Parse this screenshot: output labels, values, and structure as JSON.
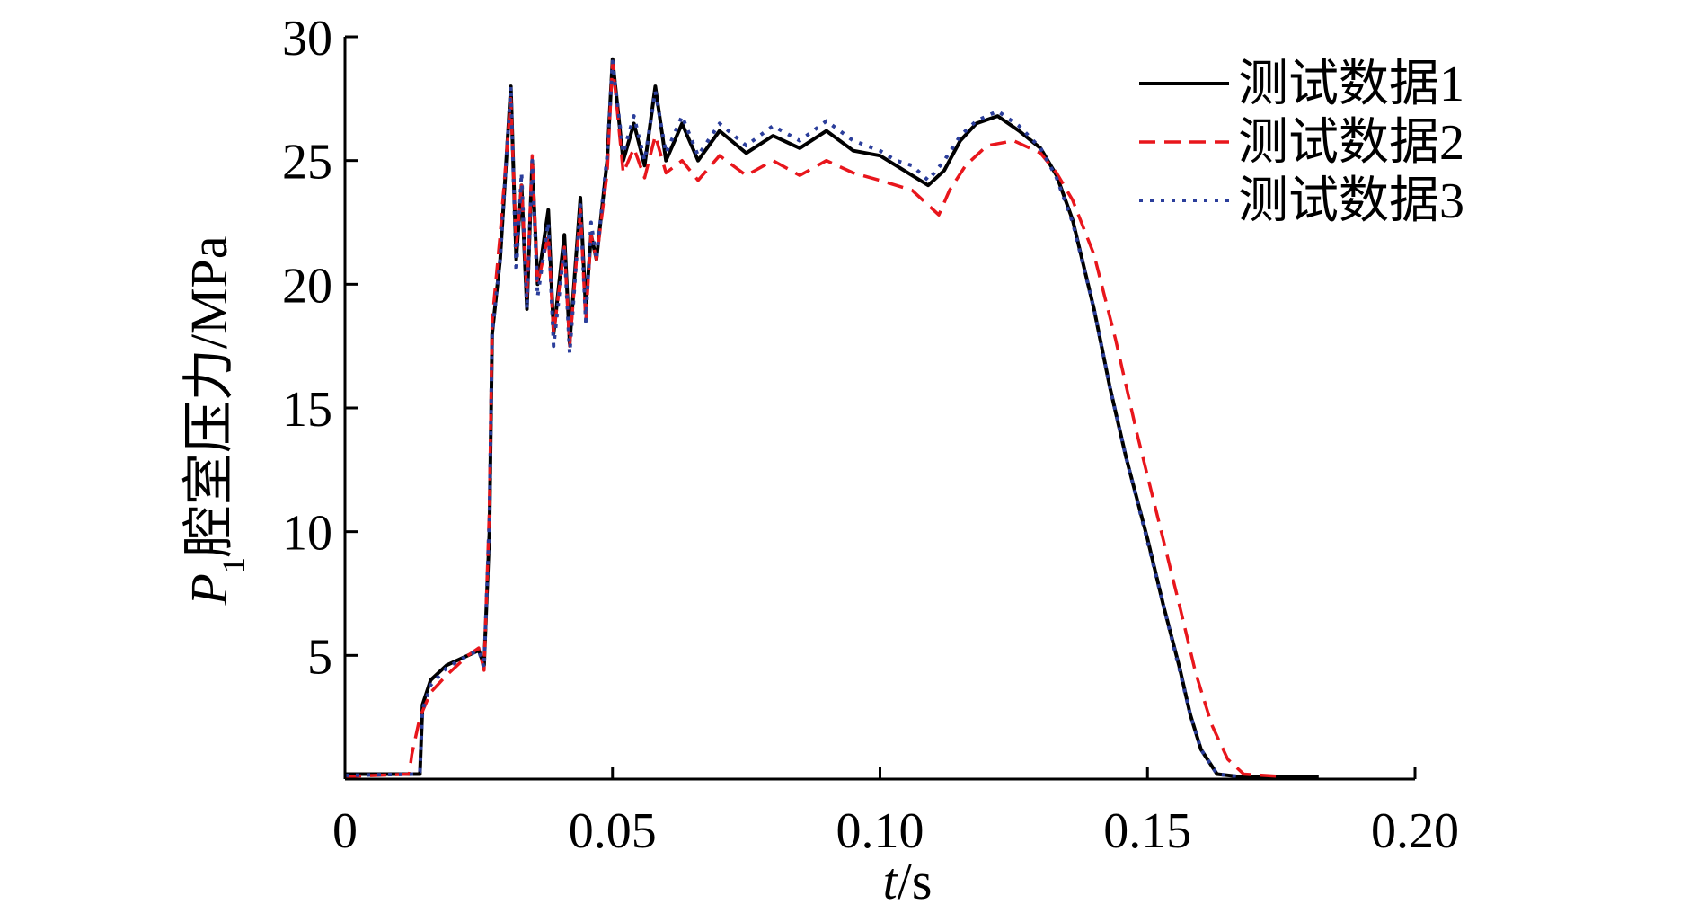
{
  "chart_data": {
    "type": "line",
    "title": "",
    "xlabel": {
      "var": "t",
      "unit": "/s"
    },
    "ylabel": {
      "var": "P",
      "sub": "1",
      "text": "腔室压力/MPa"
    },
    "xlim": [
      0,
      0.2
    ],
    "ylim": [
      0,
      30
    ],
    "x_ticks": [
      0,
      0.05,
      0.1,
      0.15,
      0.2
    ],
    "x_tick_labels": [
      "0",
      "0.05",
      "0.10",
      "0.15",
      "0.20"
    ],
    "y_ticks": [
      5,
      10,
      15,
      20,
      25,
      30
    ],
    "y_tick_labels": [
      "5",
      "10",
      "15",
      "20",
      "25",
      "30"
    ],
    "grid": false,
    "legend_position": "top-right",
    "series": [
      {
        "name": "测试数据1",
        "color": "#000000",
        "style": "solid",
        "points": [
          [
            0,
            0.2
          ],
          [
            0.013,
            0.2
          ],
          [
            0.014,
            0.2
          ],
          [
            0.0145,
            3
          ],
          [
            0.016,
            4
          ],
          [
            0.019,
            4.6
          ],
          [
            0.023,
            5
          ],
          [
            0.025,
            5.2
          ],
          [
            0.026,
            4.6
          ],
          [
            0.027,
            10
          ],
          [
            0.0275,
            18
          ],
          [
            0.029,
            21
          ],
          [
            0.031,
            28
          ],
          [
            0.032,
            21
          ],
          [
            0.033,
            24
          ],
          [
            0.034,
            19
          ],
          [
            0.035,
            25
          ],
          [
            0.036,
            20
          ],
          [
            0.038,
            23
          ],
          [
            0.039,
            18
          ],
          [
            0.041,
            22
          ],
          [
            0.042,
            17.6
          ],
          [
            0.044,
            23.5
          ],
          [
            0.045,
            19
          ],
          [
            0.046,
            22
          ],
          [
            0.047,
            21
          ],
          [
            0.049,
            25
          ],
          [
            0.05,
            29.1
          ],
          [
            0.052,
            25
          ],
          [
            0.054,
            26.5
          ],
          [
            0.056,
            24.8
          ],
          [
            0.058,
            28
          ],
          [
            0.06,
            25
          ],
          [
            0.063,
            26.5
          ],
          [
            0.066,
            25
          ],
          [
            0.07,
            26.2
          ],
          [
            0.075,
            25.3
          ],
          [
            0.08,
            26
          ],
          [
            0.085,
            25.5
          ],
          [
            0.09,
            26.2
          ],
          [
            0.095,
            25.4
          ],
          [
            0.1,
            25.2
          ],
          [
            0.103,
            24.8
          ],
          [
            0.106,
            24.4
          ],
          [
            0.109,
            24
          ],
          [
            0.112,
            24.6
          ],
          [
            0.115,
            25.8
          ],
          [
            0.118,
            26.5
          ],
          [
            0.122,
            26.8
          ],
          [
            0.126,
            26.2
          ],
          [
            0.13,
            25.5
          ],
          [
            0.133,
            24.4
          ],
          [
            0.136,
            22.6
          ],
          [
            0.14,
            19
          ],
          [
            0.143,
            15.8
          ],
          [
            0.146,
            13
          ],
          [
            0.15,
            9.7
          ],
          [
            0.153,
            7
          ],
          [
            0.156,
            4.5
          ],
          [
            0.158,
            2.6
          ],
          [
            0.16,
            1.2
          ],
          [
            0.163,
            0.2
          ],
          [
            0.167,
            0.1
          ],
          [
            0.182,
            0.1
          ]
        ]
      },
      {
        "name": "测试数据2",
        "color": "#e8161c",
        "style": "dashed",
        "points": [
          [
            0,
            0.1
          ],
          [
            0.012,
            0.2
          ],
          [
            0.0125,
            1
          ],
          [
            0.014,
            2.5
          ],
          [
            0.016,
            3.5
          ],
          [
            0.019,
            4.2
          ],
          [
            0.023,
            5
          ],
          [
            0.025,
            5.3
          ],
          [
            0.026,
            4.4
          ],
          [
            0.027,
            11
          ],
          [
            0.0275,
            18.5
          ],
          [
            0.029,
            22
          ],
          [
            0.031,
            27.5
          ],
          [
            0.032,
            21.5
          ],
          [
            0.033,
            24
          ],
          [
            0.034,
            19.5
          ],
          [
            0.035,
            25.2
          ],
          [
            0.036,
            20
          ],
          [
            0.038,
            22
          ],
          [
            0.039,
            18
          ],
          [
            0.041,
            21.5
          ],
          [
            0.042,
            17.5
          ],
          [
            0.044,
            23
          ],
          [
            0.045,
            18.5
          ],
          [
            0.046,
            22
          ],
          [
            0.047,
            21
          ],
          [
            0.049,
            24.5
          ],
          [
            0.05,
            29
          ],
          [
            0.052,
            24.5
          ],
          [
            0.054,
            25.5
          ],
          [
            0.056,
            24.3
          ],
          [
            0.058,
            26
          ],
          [
            0.06,
            24.5
          ],
          [
            0.063,
            25
          ],
          [
            0.066,
            24.2
          ],
          [
            0.07,
            25.2
          ],
          [
            0.075,
            24.4
          ],
          [
            0.08,
            25
          ],
          [
            0.085,
            24.4
          ],
          [
            0.09,
            25
          ],
          [
            0.095,
            24.5
          ],
          [
            0.1,
            24.2
          ],
          [
            0.103,
            24
          ],
          [
            0.106,
            23.8
          ],
          [
            0.109,
            23.2
          ],
          [
            0.111,
            22.8
          ],
          [
            0.113,
            23.8
          ],
          [
            0.116,
            24.8
          ],
          [
            0.12,
            25.6
          ],
          [
            0.125,
            25.8
          ],
          [
            0.13,
            25.3
          ],
          [
            0.133,
            24.5
          ],
          [
            0.136,
            23.4
          ],
          [
            0.14,
            21.2
          ],
          [
            0.144,
            17.8
          ],
          [
            0.148,
            14
          ],
          [
            0.152,
            10.5
          ],
          [
            0.156,
            7
          ],
          [
            0.159,
            4.3
          ],
          [
            0.162,
            2.2
          ],
          [
            0.165,
            0.8
          ],
          [
            0.168,
            0.2
          ],
          [
            0.175,
            0.1
          ]
        ]
      },
      {
        "name": "测试数据3",
        "color": "#2b3e9b",
        "style": "dotted",
        "points": [
          [
            0,
            0.15
          ],
          [
            0.013,
            0.2
          ],
          [
            0.014,
            0.3
          ],
          [
            0.0145,
            2.8
          ],
          [
            0.016,
            3.8
          ],
          [
            0.019,
            4.5
          ],
          [
            0.023,
            5
          ],
          [
            0.025,
            5.2
          ],
          [
            0.026,
            4.5
          ],
          [
            0.027,
            10.5
          ],
          [
            0.0275,
            18
          ],
          [
            0.029,
            21
          ],
          [
            0.031,
            28
          ],
          [
            0.032,
            20.5
          ],
          [
            0.033,
            24.5
          ],
          [
            0.034,
            19
          ],
          [
            0.035,
            25
          ],
          [
            0.036,
            19.5
          ],
          [
            0.038,
            22.5
          ],
          [
            0.039,
            17.5
          ],
          [
            0.041,
            21.5
          ],
          [
            0.042,
            17.2
          ],
          [
            0.044,
            23.2
          ],
          [
            0.045,
            18.5
          ],
          [
            0.046,
            22.5
          ],
          [
            0.047,
            21
          ],
          [
            0.049,
            25.2
          ],
          [
            0.05,
            29
          ],
          [
            0.052,
            25.3
          ],
          [
            0.054,
            26.8
          ],
          [
            0.056,
            25
          ],
          [
            0.058,
            27.8
          ],
          [
            0.06,
            25.3
          ],
          [
            0.063,
            26.8
          ],
          [
            0.066,
            25.2
          ],
          [
            0.07,
            26.5
          ],
          [
            0.075,
            25.6
          ],
          [
            0.08,
            26.4
          ],
          [
            0.085,
            25.8
          ],
          [
            0.09,
            26.6
          ],
          [
            0.095,
            25.8
          ],
          [
            0.1,
            25.4
          ],
          [
            0.103,
            25
          ],
          [
            0.106,
            24.8
          ],
          [
            0.109,
            24.2
          ],
          [
            0.112,
            25
          ],
          [
            0.115,
            26
          ],
          [
            0.118,
            26.6
          ],
          [
            0.122,
            27
          ],
          [
            0.126,
            26.4
          ],
          [
            0.13,
            25.5
          ],
          [
            0.133,
            24.3
          ],
          [
            0.136,
            22.5
          ],
          [
            0.14,
            19
          ],
          [
            0.143,
            15.8
          ],
          [
            0.146,
            13
          ],
          [
            0.15,
            9.6
          ],
          [
            0.153,
            7
          ],
          [
            0.156,
            4.4
          ],
          [
            0.158,
            2.6
          ],
          [
            0.16,
            1.2
          ],
          [
            0.163,
            0.2
          ],
          [
            0.167,
            0.1
          ]
        ]
      }
    ]
  }
}
